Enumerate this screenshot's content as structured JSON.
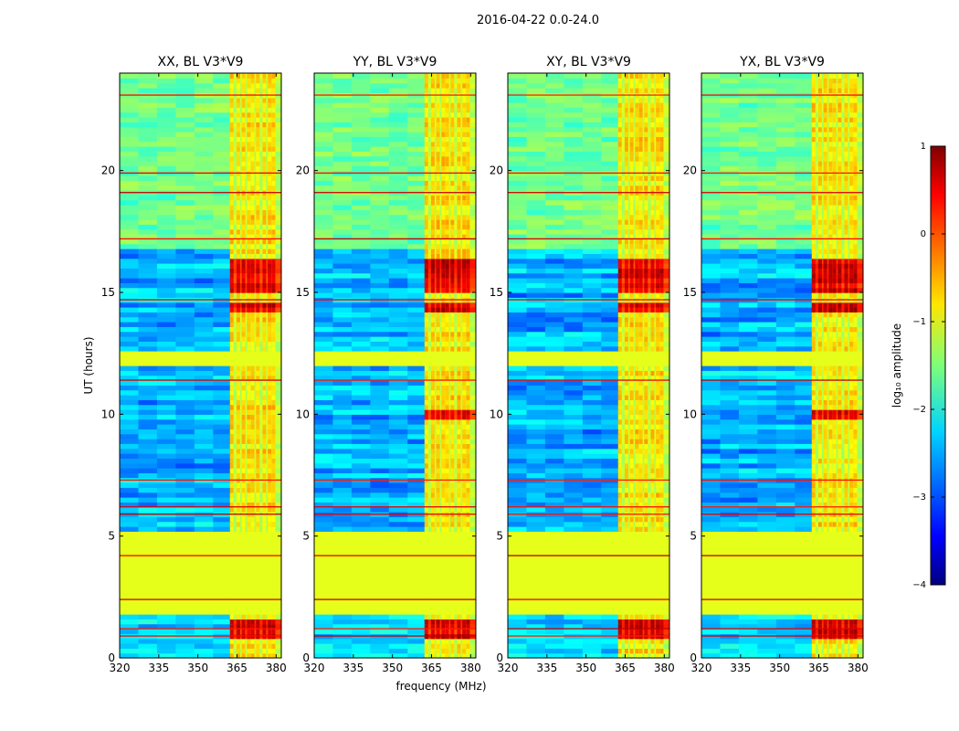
{
  "figure_title": "2016-04-22 0.0-24.0",
  "chart_data": [
    {
      "type": "heatmap",
      "title": "XX, BL V3*V9",
      "xlabel": "frequency (MHz)",
      "ylabel": "UT (hours)",
      "xlim": [
        320,
        382
      ],
      "ylim": [
        0,
        24
      ],
      "xticks": [
        320,
        335,
        350,
        365,
        380
      ],
      "yticks": [
        0,
        5,
        10,
        15,
        20
      ],
      "value": "log10 amplitude",
      "zlim": [
        -4,
        1
      ],
      "rfi_channels_mhz": [
        363,
        365.5,
        367.5,
        369.5,
        371,
        373,
        375.5,
        377.5,
        379
      ],
      "flagged_ut_ranges": [
        [
          1.8,
          5.2
        ],
        [
          12.1,
          12.7
        ]
      ],
      "strong_rfi_ut": [
        [
          0.8,
          1.6
        ],
        [
          15.0,
          16.5
        ],
        [
          14.2,
          14.5
        ]
      ]
    },
    {
      "type": "heatmap",
      "title": "YY, BL V3*V9",
      "xlabel": "frequency (MHz)",
      "ylabel": "UT (hours)",
      "xlim": [
        320,
        382
      ],
      "ylim": [
        0,
        24
      ],
      "xticks": [
        320,
        335,
        350,
        365,
        380
      ],
      "yticks": [
        0,
        5,
        10,
        15,
        20
      ],
      "value": "log10 amplitude",
      "zlim": [
        -4,
        1
      ],
      "rfi_channels_mhz": [
        363,
        365.5,
        367.5,
        369.5,
        371,
        373,
        375.5,
        377.5,
        379
      ],
      "flagged_ut_ranges": [
        [
          1.8,
          5.2
        ],
        [
          12.1,
          12.7
        ]
      ],
      "strong_rfi_ut": [
        [
          0.8,
          1.6
        ],
        [
          15.0,
          16.5
        ],
        [
          14.2,
          14.5
        ],
        [
          9.8,
          10.2
        ]
      ]
    },
    {
      "type": "heatmap",
      "title": "XY, BL V3*V9",
      "xlabel": "frequency (MHz)",
      "ylabel": "UT (hours)",
      "xlim": [
        320,
        382
      ],
      "ylim": [
        0,
        24
      ],
      "xticks": [
        320,
        335,
        350,
        365,
        380
      ],
      "yticks": [
        0,
        5,
        10,
        15,
        20
      ],
      "value": "log10 amplitude",
      "zlim": [
        -4,
        1
      ],
      "rfi_channels_mhz": [
        363,
        365.5,
        367.5,
        369.5,
        371,
        373,
        375.5,
        377.5,
        379
      ],
      "flagged_ut_ranges": [
        [
          1.8,
          5.2
        ],
        [
          12.1,
          12.7
        ]
      ],
      "strong_rfi_ut": [
        [
          0.8,
          1.6
        ],
        [
          15.0,
          16.5
        ],
        [
          14.2,
          14.5
        ]
      ]
    },
    {
      "type": "heatmap",
      "title": "YX, BL V3*V9",
      "xlabel": "frequency (MHz)",
      "ylabel": "UT (hours)",
      "xlim": [
        320,
        382
      ],
      "ylim": [
        0,
        24
      ],
      "xticks": [
        320,
        335,
        350,
        365,
        380
      ],
      "yticks": [
        0,
        5,
        10,
        15,
        20
      ],
      "value": "log10 amplitude",
      "zlim": [
        -4,
        1
      ],
      "rfi_channels_mhz": [
        363,
        365.5,
        367.5,
        369.5,
        371,
        373,
        375.5,
        377.5,
        379
      ],
      "flagged_ut_ranges": [
        [
          1.8,
          5.2
        ],
        [
          12.1,
          12.7
        ]
      ],
      "strong_rfi_ut": [
        [
          0.8,
          1.6
        ],
        [
          15.0,
          16.5
        ],
        [
          14.2,
          14.5
        ],
        [
          9.8,
          10.2
        ]
      ]
    }
  ],
  "colorbar": {
    "label": "log₁₀ amplitude",
    "ticks": [
      1,
      0,
      -1,
      -2,
      -3,
      -4
    ],
    "tick_labels": [
      "1",
      "0",
      "−1",
      "−2",
      "−3",
      "−4"
    ],
    "colormap": [
      "#00007f",
      "#0000ff",
      "#0080ff",
      "#00ffff",
      "#80ff7f",
      "#ffff00",
      "#ff8000",
      "#ff0000",
      "#7f0000"
    ]
  }
}
